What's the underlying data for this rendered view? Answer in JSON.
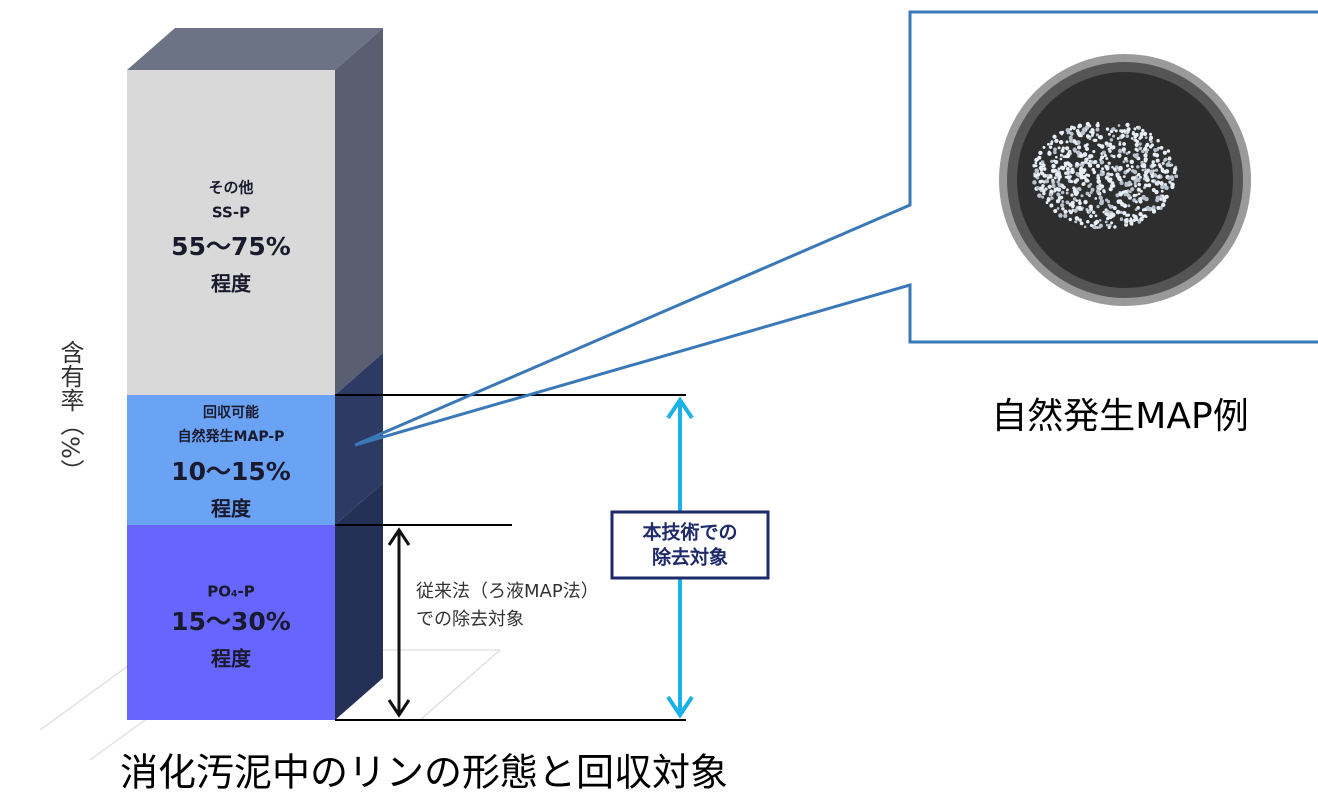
{
  "y_axis_label": "含有率（%）",
  "segments": [
    {
      "lines": [
        "その他",
        "SS-P"
      ],
      "range": "55〜75%",
      "suffix": "程度"
    },
    {
      "lines": [
        "回収可能",
        "自然発生MAP-P"
      ],
      "range": "10〜15%",
      "suffix": "程度"
    },
    {
      "lines": [
        "PO₄-P"
      ],
      "range": "15〜30%",
      "suffix": "程度"
    }
  ],
  "conventional_label": [
    "従来法（ろ液MAP法）",
    "での除去対象"
  ],
  "this_tech_label": [
    "本技術での",
    "除去対象"
  ],
  "photo_caption": "自然発生MAP例",
  "title": "消化汚泥中のリンの形態と回収対象"
}
